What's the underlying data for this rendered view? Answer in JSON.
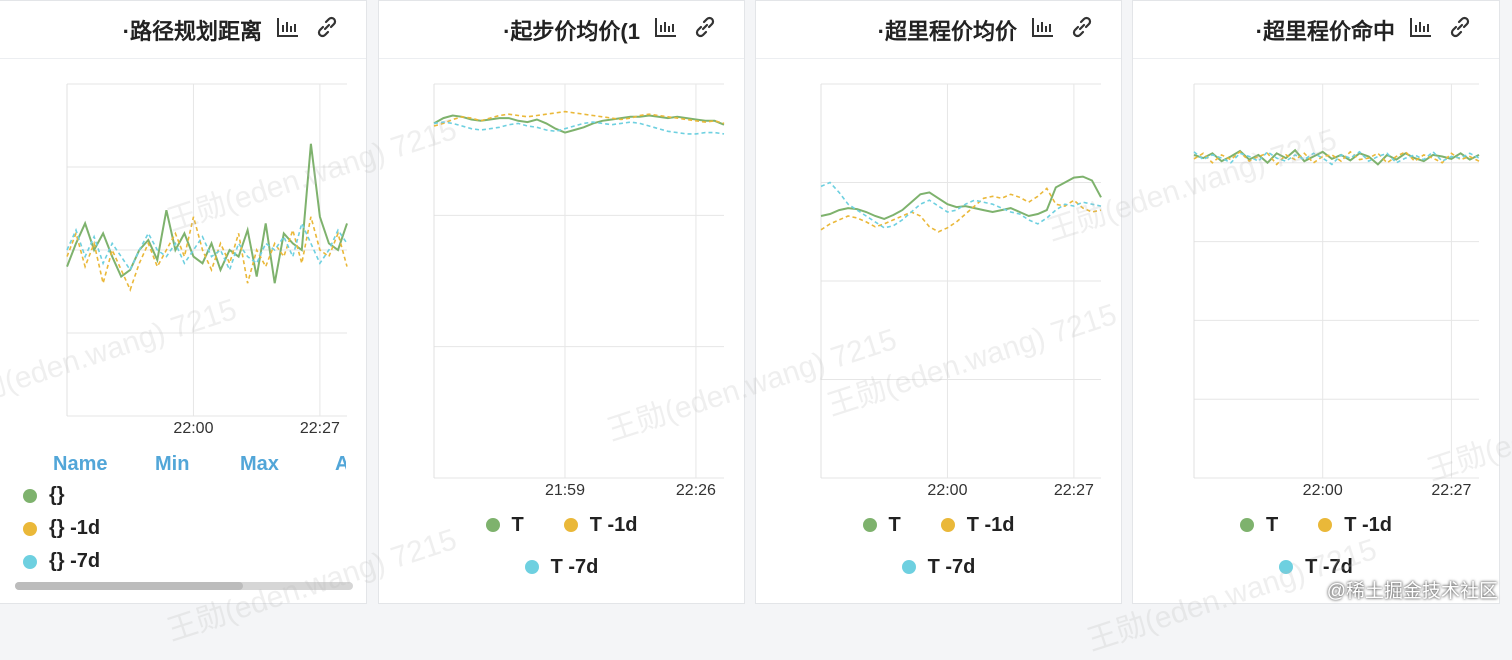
{
  "chart_data": [
    {
      "type": "line",
      "title": "·路径规划距离",
      "categories": [
        null,
        null,
        null,
        null,
        null,
        null,
        null,
        null,
        null,
        null,
        null,
        null,
        null,
        null,
        "22:00",
        null,
        null,
        null,
        null,
        null,
        null,
        null,
        null,
        null,
        null,
        null,
        null,
        null,
        "22:27",
        null,
        null,
        null
      ],
      "ylim": [
        0,
        100
      ],
      "yticks": [
        0,
        25,
        50,
        75,
        100
      ],
      "grid": true,
      "legend_columns": [
        "Name",
        "Min",
        "Max",
        "Avg"
      ],
      "series": [
        {
          "name": "{}",
          "color": "#7eb26d",
          "dashed": false,
          "values": [
            45,
            52,
            58,
            50,
            55,
            48,
            42,
            44,
            50,
            53,
            47,
            62,
            50,
            55,
            48,
            46,
            52,
            44,
            50,
            48,
            56,
            42,
            58,
            40,
            55,
            52,
            50,
            82,
            60,
            52,
            50,
            58
          ]
        },
        {
          "name": "{} -1d",
          "color": "#eab839",
          "dashed": true,
          "values": [
            48,
            55,
            45,
            52,
            40,
            50,
            44,
            38,
            46,
            52,
            45,
            50,
            55,
            48,
            60,
            50,
            44,
            52,
            46,
            55,
            40,
            50,
            45,
            52,
            48,
            56,
            46,
            60,
            50,
            48,
            55,
            45
          ]
        },
        {
          "name": "{} -7d",
          "color": "#6ed0e0",
          "dashed": true,
          "values": [
            50,
            56,
            48,
            54,
            46,
            52,
            48,
            44,
            50,
            55,
            50,
            48,
            52,
            46,
            50,
            54,
            48,
            50,
            44,
            52,
            48,
            46,
            52,
            50,
            54,
            48,
            58,
            52,
            46,
            50,
            56,
            52
          ]
        }
      ]
    },
    {
      "type": "line",
      "title": "·起步价均价(1",
      "categories": [
        null,
        null,
        null,
        null,
        null,
        null,
        null,
        null,
        null,
        null,
        null,
        null,
        null,
        null,
        "21:59",
        null,
        null,
        null,
        null,
        null,
        null,
        null,
        null,
        null,
        null,
        null,
        null,
        null,
        "22:26",
        null,
        null,
        null
      ],
      "ylim": [
        0,
        3
      ],
      "yticks": [
        0,
        1,
        2,
        3
      ],
      "grid": true,
      "series": [
        {
          "name": "T",
          "color": "#7eb26d",
          "dashed": false,
          "values": [
            2.7,
            2.74,
            2.76,
            2.75,
            2.73,
            2.72,
            2.73,
            2.74,
            2.74,
            2.72,
            2.71,
            2.73,
            2.7,
            2.66,
            2.63,
            2.65,
            2.67,
            2.7,
            2.72,
            2.73,
            2.74,
            2.75,
            2.75,
            2.76,
            2.75,
            2.74,
            2.75,
            2.74,
            2.73,
            2.72,
            2.72,
            2.69
          ]
        },
        {
          "name": "T -1d",
          "color": "#eab839",
          "dashed": true,
          "values": [
            2.68,
            2.7,
            2.73,
            2.75,
            2.74,
            2.72,
            2.74,
            2.76,
            2.77,
            2.76,
            2.75,
            2.76,
            2.77,
            2.78,
            2.79,
            2.78,
            2.77,
            2.76,
            2.75,
            2.74,
            2.73,
            2.74,
            2.76,
            2.77,
            2.76,
            2.75,
            2.74,
            2.73,
            2.72,
            2.71,
            2.72,
            2.7
          ]
        },
        {
          "name": "T -7d",
          "color": "#6ed0e0",
          "dashed": true,
          "values": [
            2.7,
            2.71,
            2.7,
            2.68,
            2.66,
            2.65,
            2.66,
            2.67,
            2.69,
            2.7,
            2.68,
            2.67,
            2.65,
            2.64,
            2.66,
            2.68,
            2.7,
            2.71,
            2.7,
            2.69,
            2.7,
            2.71,
            2.7,
            2.68,
            2.66,
            2.64,
            2.63,
            2.62,
            2.62,
            2.63,
            2.63,
            2.62
          ]
        }
      ]
    },
    {
      "type": "line",
      "title": "·超里程价均价",
      "categories": [
        null,
        null,
        null,
        null,
        null,
        null,
        null,
        null,
        null,
        null,
        null,
        null,
        null,
        null,
        "22:00",
        null,
        null,
        null,
        null,
        null,
        null,
        null,
        null,
        null,
        null,
        null,
        null,
        null,
        "22:27",
        null,
        null,
        null
      ],
      "ylim": [
        0,
        4
      ],
      "yticks": [
        0,
        1,
        2,
        3,
        4
      ],
      "grid": true,
      "series": [
        {
          "name": "T",
          "color": "#7eb26d",
          "dashed": false,
          "values": [
            2.66,
            2.68,
            2.72,
            2.74,
            2.73,
            2.7,
            2.66,
            2.63,
            2.67,
            2.72,
            2.8,
            2.88,
            2.9,
            2.84,
            2.78,
            2.75,
            2.76,
            2.74,
            2.72,
            2.7,
            2.72,
            2.74,
            2.7,
            2.66,
            2.68,
            2.72,
            2.95,
            3.0,
            3.05,
            3.06,
            3.02,
            2.85
          ]
        },
        {
          "name": "T -1d",
          "color": "#eab839",
          "dashed": true,
          "values": [
            2.52,
            2.58,
            2.62,
            2.66,
            2.64,
            2.6,
            2.55,
            2.58,
            2.62,
            2.66,
            2.7,
            2.66,
            2.55,
            2.5,
            2.54,
            2.6,
            2.68,
            2.76,
            2.84,
            2.86,
            2.84,
            2.88,
            2.85,
            2.8,
            2.86,
            2.94,
            2.78,
            2.76,
            2.82,
            2.74,
            2.7,
            2.72
          ]
        },
        {
          "name": "T -7d",
          "color": "#6ed0e0",
          "dashed": true,
          "values": [
            2.96,
            3.0,
            2.9,
            2.78,
            2.72,
            2.66,
            2.6,
            2.54,
            2.56,
            2.62,
            2.7,
            2.78,
            2.82,
            2.76,
            2.7,
            2.72,
            2.78,
            2.82,
            2.8,
            2.78,
            2.74,
            2.7,
            2.68,
            2.62,
            2.58,
            2.64,
            2.72,
            2.78,
            2.76,
            2.8,
            2.78,
            2.76
          ]
        }
      ]
    },
    {
      "type": "line",
      "title": "·超里程价命中",
      "categories": [
        null,
        null,
        null,
        null,
        null,
        null,
        null,
        null,
        null,
        null,
        null,
        null,
        null,
        null,
        "22:00",
        null,
        null,
        null,
        null,
        null,
        null,
        null,
        null,
        null,
        null,
        null,
        null,
        null,
        "22:27",
        null,
        null,
        null
      ],
      "ylim": [
        0,
        5
      ],
      "yticks": [
        0,
        1,
        2,
        3,
        4,
        5
      ],
      "grid": true,
      "series": [
        {
          "name": "T",
          "color": "#7eb26d",
          "dashed": false,
          "values": [
            4.1,
            4.06,
            4.12,
            4.02,
            4.08,
            4.15,
            4.04,
            4.1,
            4.0,
            4.12,
            4.06,
            4.16,
            4.02,
            4.08,
            4.14,
            4.05,
            4.1,
            4.03,
            4.12,
            4.08,
            3.98,
            4.1,
            4.04,
            4.12,
            4.06,
            4.02,
            4.1,
            4.08,
            4.05,
            4.12,
            4.04,
            4.1
          ]
        },
        {
          "name": "T -1d",
          "color": "#eab839",
          "dashed": true,
          "values": [
            4.05,
            4.12,
            4.0,
            4.1,
            4.04,
            4.14,
            4.02,
            4.08,
            4.12,
            3.98,
            4.1,
            4.04,
            4.12,
            4.0,
            4.08,
            4.1,
            4.02,
            4.14,
            4.04,
            4.06,
            4.12,
            4.0,
            4.08,
            4.14,
            4.02,
            4.1,
            4.06,
            4.0,
            4.12,
            4.04,
            4.08,
            4.02
          ]
        },
        {
          "name": "T -7d",
          "color": "#6ed0e0",
          "dashed": true,
          "values": [
            4.14,
            4.04,
            4.1,
            4.06,
            4.0,
            4.12,
            4.08,
            4.02,
            4.14,
            4.06,
            4.02,
            4.1,
            4.04,
            4.12,
            4.06,
            3.98,
            4.1,
            4.06,
            4.14,
            4.02,
            4.08,
            4.12,
            4.0,
            4.06,
            4.1,
            4.04,
            4.14,
            4.02,
            4.08,
            4.06,
            4.12,
            4.06
          ]
        }
      ]
    }
  ],
  "watermark": "王勋(eden.wang) 7215",
  "site_mark": "@稀土掘金技术社区"
}
